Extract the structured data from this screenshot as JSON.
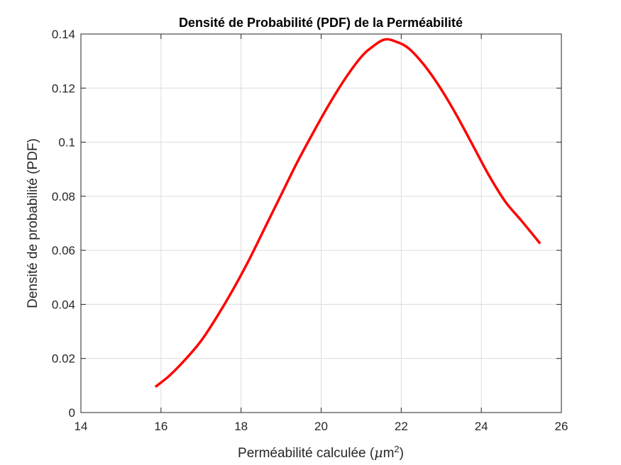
{
  "chart_data": {
    "type": "line",
    "title": "Densité de Probabilité (PDF) de la Perméabilité",
    "xlabel": "Perméabilité calculée (μm²)",
    "xlabel_parts": {
      "prefix": "Perméabilité calculée (",
      "mu": "μ",
      "unit": "m",
      "exp": "2",
      "suffix": ")"
    },
    "ylabel": "Densité de probabilité (PDF)",
    "xlim": [
      14,
      26
    ],
    "ylim": [
      0,
      0.14
    ],
    "xticks": [
      14,
      16,
      18,
      20,
      22,
      24,
      26
    ],
    "xtick_labels": [
      "14",
      "16",
      "18",
      "20",
      "22",
      "24",
      "26"
    ],
    "yticks": [
      0,
      0.02,
      0.04,
      0.06,
      0.08,
      0.1,
      0.12,
      0.14
    ],
    "ytick_labels": [
      "0",
      "0.02",
      "0.04",
      "0.06",
      "0.08",
      "0.1",
      "0.12",
      "0.14"
    ],
    "grid": true,
    "series": [
      {
        "color": "#ff0000",
        "x": [
          15.86,
          16.2,
          16.6,
          17.0,
          17.4,
          17.8,
          18.2,
          18.6,
          19.0,
          19.4,
          19.8,
          20.2,
          20.6,
          21.0,
          21.3,
          21.6,
          21.9,
          22.2,
          22.6,
          23.0,
          23.4,
          23.8,
          24.2,
          24.6,
          25.0,
          25.47
        ],
        "y": [
          0.0095,
          0.0135,
          0.0195,
          0.0265,
          0.0355,
          0.0455,
          0.0565,
          0.0685,
          0.0805,
          0.0925,
          0.1035,
          0.114,
          0.1235,
          0.1315,
          0.1355,
          0.138,
          0.137,
          0.1345,
          0.128,
          0.1195,
          0.1095,
          0.0985,
          0.0875,
          0.078,
          0.071,
          0.0625
        ]
      }
    ]
  }
}
